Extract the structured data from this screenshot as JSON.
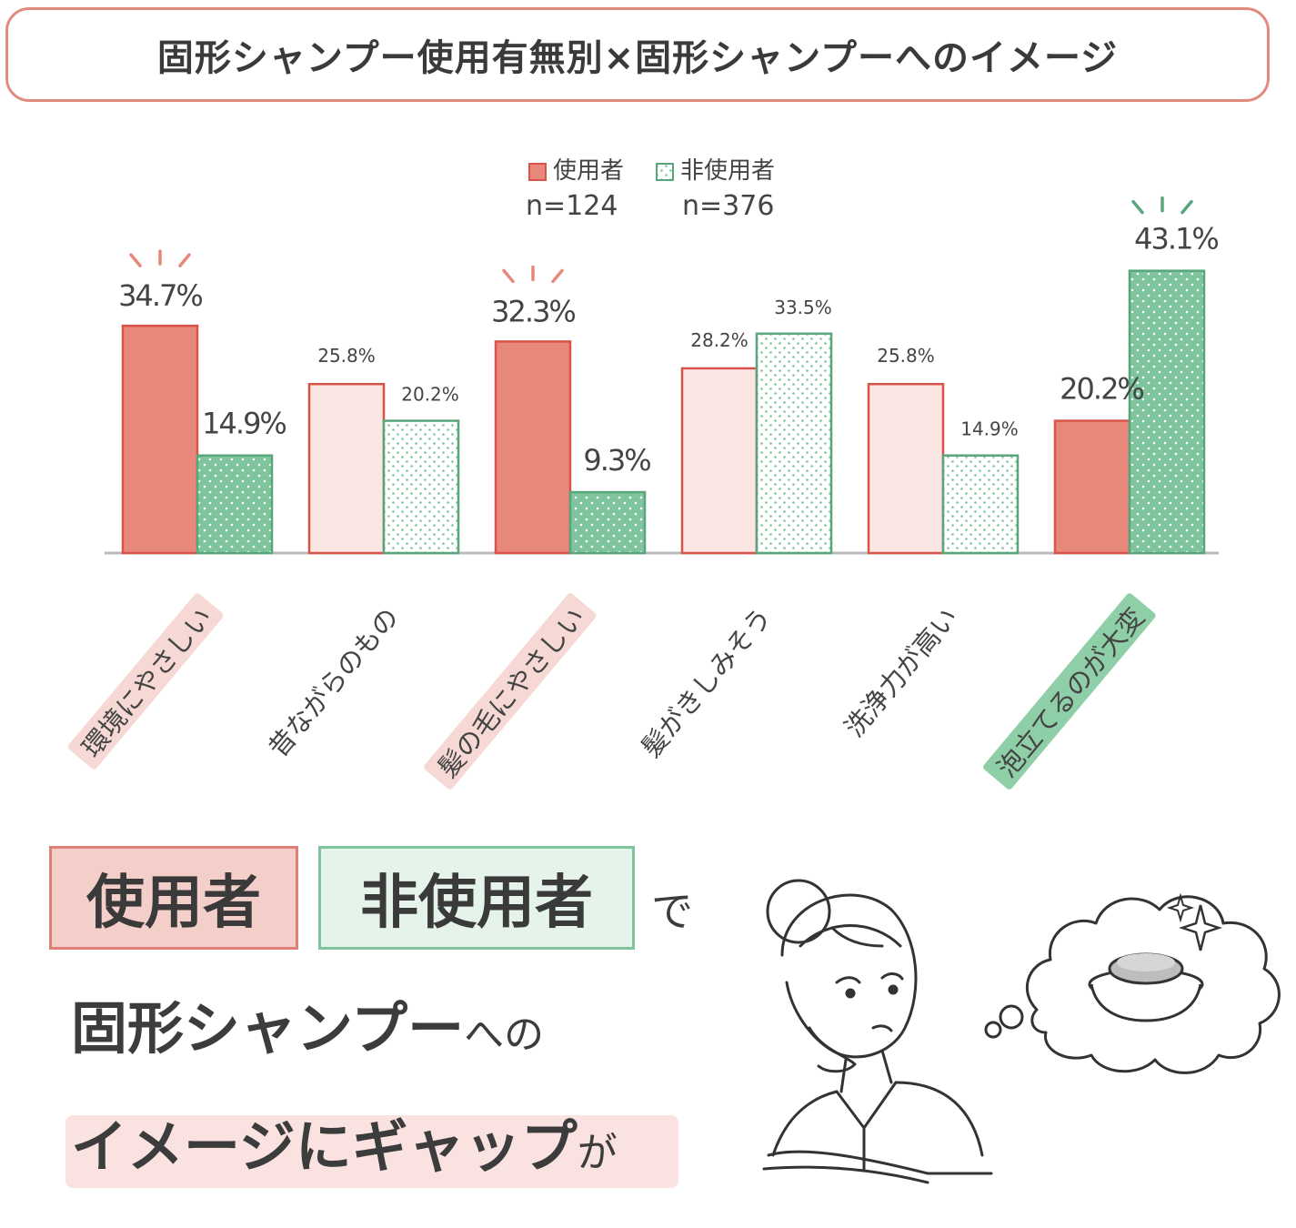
{
  "title": "固形シャンプー使用有無別×固形シャンプーへのイメージ",
  "legend": {
    "user_label": "使用者",
    "user_n": "n=124",
    "nonuser_label": "非使用者",
    "nonuser_n": "n=376"
  },
  "chart_data": {
    "type": "bar",
    "title": "固形シャンプー使用有無別×固形シャンプーへのイメージ",
    "categories": [
      "環境にやさしい",
      "昔ながらのもの",
      "髪の毛にやさしい",
      "髪がきしみそう",
      "洗浄力が高い",
      "泡立てるのが大変"
    ],
    "series": [
      {
        "name": "使用者",
        "n": "n=124",
        "values": [
          34.7,
          25.8,
          32.3,
          28.2,
          25.8,
          20.2
        ]
      },
      {
        "name": "非使用者",
        "n": "n=376",
        "values": [
          14.9,
          20.2,
          9.3,
          33.5,
          14.9,
          43.1
        ]
      }
    ],
    "value_labels": {
      "使用者": [
        "34.7%",
        "25.8%",
        "32.3%",
        "28.2%",
        "25.8%",
        "20.2%"
      ],
      "非使用者": [
        "14.9%",
        "20.2%",
        "9.3%",
        "33.5%",
        "14.9%",
        "43.1%"
      ]
    },
    "highlighted_categories": [
      "環境にやさしい",
      "髪の毛にやさしい",
      "泡立てるのが大変"
    ],
    "ylim": [
      0,
      50
    ],
    "grid": false,
    "legend_position": "top-center",
    "colors": {
      "user_strong": "#e8887a",
      "user_light": "#fbe6e4",
      "user_stroke": "#d9534a",
      "nonuser_strong": "#7ec59d",
      "nonuser_light": "#ffffff",
      "nonuser_stroke": "#5aa67c",
      "highlight_pink": "#f6d9d5",
      "highlight_green": "#8fcfa8"
    }
  },
  "bottom_text": {
    "tag_user": "使用者",
    "tag_nonuser": "非使用者",
    "de": "で",
    "line2_bold": "固形シャンプー",
    "line2_small": "への",
    "line3_bold": "イメージにギャップ",
    "line3_small": "が"
  },
  "illustration": {
    "icon": "woman-thinking-icon",
    "thought_icon": "soap-bar-icon"
  }
}
